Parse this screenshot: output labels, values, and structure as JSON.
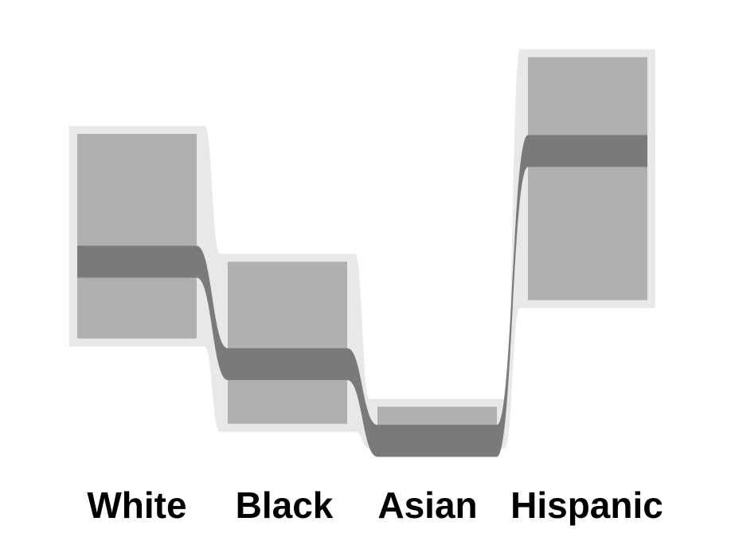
{
  "chart_data": {
    "type": "bar",
    "title": "",
    "xlabel": "",
    "ylabel": "",
    "categories": [
      "White",
      "Black",
      "Asian",
      "Hispanic"
    ],
    "series": [
      {
        "values": [
          0.47,
          0.23,
          0.05,
          0.73
        ]
      }
    ],
    "interval": {
      "low": [
        0.29,
        0.09,
        0.05,
        0.38
      ],
      "high": [
        0.77,
        0.47,
        0.13,
        0.95
      ]
    },
    "ylim": [
      0,
      1
    ],
    "grid": false,
    "legend": "none",
    "colors": {
      "outer_band": "#e8e8e8",
      "interval_bar": "#b0b0b0",
      "median_band": "#7a7a7a",
      "label": "#000000"
    }
  }
}
